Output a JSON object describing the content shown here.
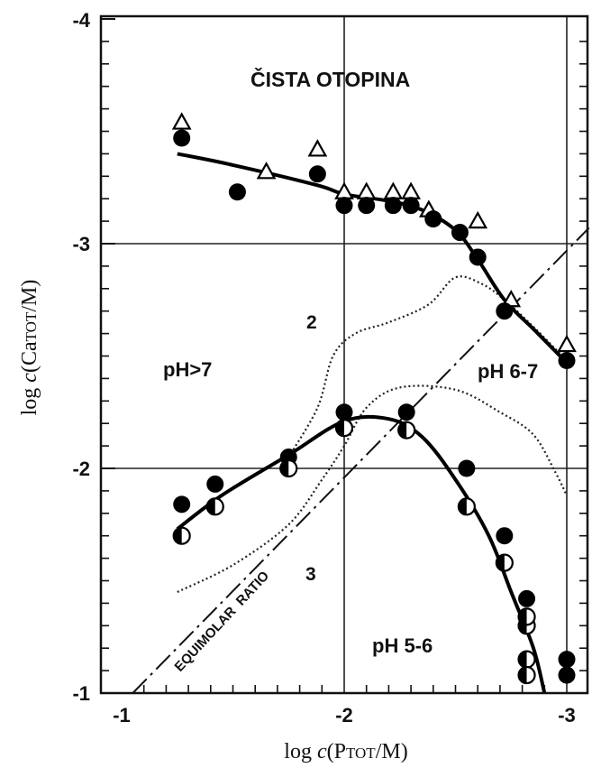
{
  "chart_data": {
    "type": "scatter",
    "title": "ČISTA OTOPINA",
    "xlabel_parts": [
      "log ",
      "c",
      "(P",
      "TOT",
      "/M)"
    ],
    "ylabel_parts": [
      "log ",
      "c",
      "(Ca",
      "TOT",
      "/M)"
    ],
    "xlim": [
      -1,
      -3.1
    ],
    "ylim": [
      -1,
      -4
    ],
    "x_ticks": [
      -1,
      -2,
      -3
    ],
    "x_tick_labels": [
      "-1",
      "-2",
      "-3"
    ],
    "y_ticks": [
      -1,
      -2,
      -3,
      -4
    ],
    "y_tick_labels": [
      "-1",
      "-2",
      "-3",
      "-4"
    ],
    "grid_x": [
      -2,
      -3
    ],
    "grid_y": [
      -2,
      -3
    ],
    "annotations": {
      "ph_gt7": "pH>7",
      "ph_67": "pH 6-7",
      "ph_56": "pH 5-6",
      "equimolar": "EQUIMOLAR  RATIO",
      "label_2": "2",
      "label_3": "3"
    },
    "series": [
      {
        "marker": "triangle-open",
        "x": [
          -1.27,
          -1.65,
          -1.88,
          -2.0,
          -2.1,
          -2.22,
          -2.3,
          -2.38,
          -2.6,
          -2.75,
          -3.0
        ],
        "y": [
          -3.54,
          -3.32,
          -3.42,
          -3.23,
          -3.23,
          -3.23,
          -3.23,
          -3.15,
          -3.1,
          -2.75,
          -2.55
        ]
      },
      {
        "marker": "filled-circle",
        "x": [
          -1.27,
          -1.52,
          -1.88,
          -2.0,
          -2.1,
          -2.22,
          -2.3,
          -2.4,
          -2.52,
          -2.6,
          -2.72,
          -3.0
        ],
        "y": [
          -3.47,
          -3.23,
          -3.31,
          -3.17,
          -3.17,
          -3.17,
          -3.17,
          -3.11,
          -3.05,
          -2.94,
          -2.7,
          -2.48
        ]
      },
      {
        "marker": "filled-circle",
        "x": [
          -1.27,
          -1.42,
          -1.75,
          -2.0,
          -2.28,
          -2.55,
          -2.72,
          -2.82,
          -3.0,
          -3.0
        ],
        "y": [
          -1.84,
          -1.93,
          -2.05,
          -2.25,
          -2.25,
          -2.0,
          -1.7,
          -1.42,
          -1.15,
          -1.08
        ]
      },
      {
        "marker": "half-filled-circle",
        "x": [
          -1.27,
          -1.42,
          -1.75,
          -2.0,
          -2.28,
          -2.55,
          -2.72,
          -2.82,
          -2.82,
          -2.82,
          -2.82
        ],
        "y": [
          -1.7,
          -1.83,
          -2.0,
          -2.18,
          -2.17,
          -1.83,
          -1.58,
          -1.3,
          -1.15,
          -1.08,
          -1.34
        ]
      }
    ],
    "curves": {
      "upper_fit": {
        "x": [
          -1.25,
          -1.5,
          -1.88,
          -2.0,
          -2.2,
          -2.35,
          -2.5,
          -2.6,
          -2.72,
          -2.85,
          -3.0
        ],
        "y": [
          -3.4,
          -3.35,
          -3.26,
          -3.22,
          -3.19,
          -3.15,
          -3.06,
          -2.93,
          -2.75,
          -2.62,
          -2.47
        ]
      },
      "lower_fit": {
        "x": [
          -1.25,
          -1.45,
          -1.75,
          -2.0,
          -2.2,
          -2.35,
          -2.5,
          -2.65,
          -2.75,
          -2.85,
          -2.9
        ],
        "y": [
          -1.73,
          -1.88,
          -2.06,
          -2.21,
          -2.22,
          -2.14,
          -1.95,
          -1.7,
          -1.45,
          -1.2,
          -1.0
        ]
      },
      "dotted_2": {
        "x": [
          -1.75,
          -1.88,
          -1.95,
          -2.05,
          -2.2,
          -2.38,
          -2.5,
          -2.62,
          -2.72,
          -2.85,
          -2.98,
          -3.0
        ],
        "y": [
          -2.05,
          -2.27,
          -2.5,
          -2.6,
          -2.65,
          -2.73,
          -2.85,
          -2.82,
          -2.75,
          -2.63,
          -2.5,
          -2.48
        ]
      },
      "dotted_3": {
        "x": [
          -1.25,
          -1.5,
          -1.75,
          -1.9,
          -2.0,
          -2.1,
          -2.25,
          -2.5,
          -2.7,
          -2.85,
          -2.95,
          -3.0
        ],
        "y": [
          -1.45,
          -1.57,
          -1.75,
          -1.95,
          -2.1,
          -2.27,
          -2.36,
          -2.35,
          -2.25,
          -2.15,
          -1.98,
          -1.88
        ]
      },
      "equimolar_line": {
        "x": [
          -1.05,
          -3.1
        ],
        "y": [
          -1.0,
          -3.07
        ]
      }
    }
  }
}
